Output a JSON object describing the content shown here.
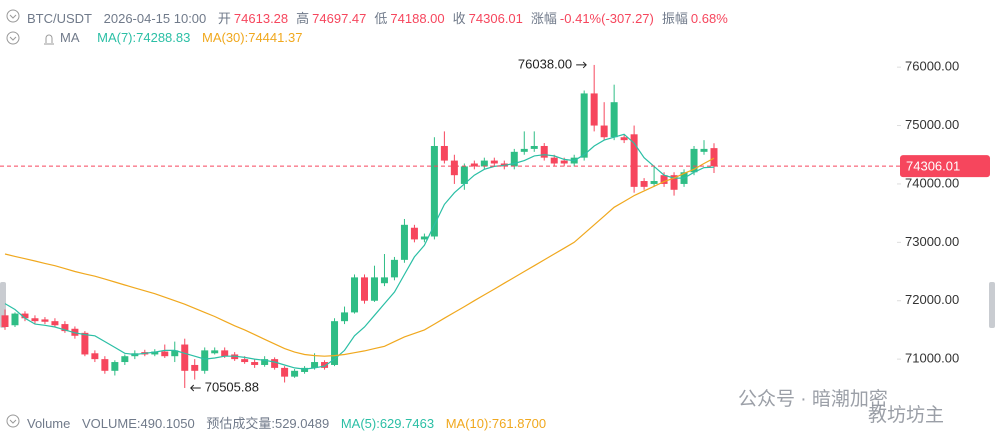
{
  "header": {
    "symbol": "BTC/USDT",
    "time": "2026-04-15 10:00",
    "items": [
      {
        "label": "开",
        "value": "74613.28"
      },
      {
        "label": "高",
        "value": "74697.47"
      },
      {
        "label": "低",
        "value": "74188.00"
      },
      {
        "label": "收",
        "value": "74306.01"
      },
      {
        "label": "涨幅",
        "value": "-0.41%(-307.27)"
      },
      {
        "label": "振幅",
        "value": "0.68%"
      }
    ]
  },
  "ma_legend": {
    "title": "MA",
    "ma7": "MA(7):74288.83",
    "ma30": "MA(30):74441.37"
  },
  "volume_legend": {
    "title": "Volume",
    "volume": "VOLUME:490.1050",
    "estimate": "预估成交量:529.0489",
    "ma5": "MA(5):629.7463",
    "ma10": "MA(10):761.8700"
  },
  "watermark": [
    "公众号 · 暗潮加密",
    "教坊坊主"
  ],
  "chart_data": {
    "type": "candlestick",
    "up_color": "#2ebd85",
    "down_color": "#f6465d",
    "open": [
      71750,
      71580,
      71780,
      71700,
      71680,
      71650,
      71600,
      71520,
      71450,
      71100,
      71000,
      70800,
      70950,
      71050,
      71120,
      71080,
      71130,
      71050,
      71250,
      70900,
      70800,
      71100,
      71150,
      71080,
      71000,
      70950,
      70900,
      71000,
      70850,
      70700,
      70780,
      70850,
      70950,
      70900,
      71650,
      71800,
      72400,
      72000,
      72300,
      72400,
      72700,
      73250,
      73050,
      73100,
      74650,
      74400,
      74000,
      74350,
      74300,
      74400,
      74350,
      74300,
      74550,
      74600,
      74650,
      74450,
      74400,
      74350,
      74450,
      75550,
      75000,
      74800,
      74800,
      74850,
      74050,
      74000,
      74150,
      74150,
      74000,
      74200,
      74550,
      74613.28
    ],
    "high": [
      71850,
      71800,
      71820,
      71750,
      71720,
      71700,
      71650,
      71560,
      71480,
      71150,
      71050,
      70980,
      71080,
      71150,
      71160,
      71170,
      71250,
      71300,
      71350,
      71000,
      71200,
      71200,
      71200,
      71120,
      71050,
      71000,
      71050,
      71030,
      70880,
      70830,
      70880,
      71100,
      70980,
      71700,
      71900,
      72450,
      72450,
      72600,
      72800,
      72750,
      73400,
      73300,
      73150,
      74800,
      74900,
      74500,
      74350,
      74400,
      74450,
      74450,
      74400,
      74600,
      74900,
      74900,
      74700,
      74500,
      74450,
      74500,
      75600,
      76038,
      75400,
      75700,
      74850,
      75000,
      74100,
      74300,
      74200,
      74200,
      74250,
      74650,
      74750,
      74697.47
    ],
    "low": [
      71500,
      71550,
      71650,
      71600,
      71600,
      71550,
      71450,
      71350,
      71050,
      70950,
      70750,
      70720,
      70900,
      71000,
      71050,
      71050,
      71020,
      70950,
      70505.88,
      70650,
      70750,
      71080,
      71020,
      70970,
      70920,
      70850,
      70870,
      70820,
      70600,
      70680,
      70750,
      70820,
      70820,
      70880,
      71600,
      71780,
      71950,
      71980,
      72250,
      72350,
      72650,
      73000,
      73000,
      73050,
      74350,
      74000,
      73900,
      74250,
      74250,
      74300,
      74250,
      74250,
      74500,
      74550,
      74400,
      74300,
      74300,
      74300,
      74400,
      74900,
      74750,
      74750,
      74700,
      73850,
      73900,
      73950,
      73950,
      73800,
      73950,
      74150,
      74500,
      74188
    ],
    "close": [
      71550,
      71780,
      71700,
      71650,
      71640,
      71580,
      71480,
      71400,
      71080,
      71000,
      70800,
      70950,
      71050,
      71100,
      71080,
      71130,
      71050,
      71150,
      70800,
      70800,
      71150,
      71150,
      71050,
      71000,
      70950,
      70900,
      71000,
      70850,
      70700,
      70800,
      70850,
      70950,
      70850,
      71650,
      71800,
      72400,
      72000,
      72400,
      72400,
      72700,
      73300,
      73050,
      73100,
      74650,
      74400,
      74150,
      74300,
      74300,
      74400,
      74350,
      74300,
      74550,
      74600,
      74650,
      74450,
      74350,
      74350,
      74450,
      75550,
      75000,
      74800,
      75400,
      74750,
      73950,
      73950,
      74050,
      74000,
      73900,
      74200,
      74600,
      74600,
      74306.01
    ],
    "series": [
      {
        "name": "MA(7)",
        "color": "#2bbfa5",
        "values": [
          71950,
          71850,
          71700,
          71600,
          71580,
          71550,
          71500,
          71450,
          71420,
          71400,
          71300,
          71200,
          71100,
          71080,
          71100,
          71120,
          71150,
          71150,
          71100,
          71050,
          71000,
          71020,
          71050,
          71050,
          71030,
          71000,
          70980,
          70950,
          70900,
          70850,
          70830,
          70850,
          70880,
          71000,
          71150,
          71400,
          71550,
          71750,
          71950,
          72150,
          72450,
          72750,
          72950,
          73300,
          73650,
          73850,
          74000,
          74150,
          74250,
          74300,
          74320,
          74350,
          74400,
          74480,
          74500,
          74480,
          74420,
          74400,
          74500,
          74650,
          74750,
          74800,
          74850,
          74700,
          74450,
          74300,
          74150,
          74100,
          74100,
          74200,
          74280,
          74288.83
        ]
      },
      {
        "name": "MA(30)",
        "color": "#f0a81e",
        "values": [
          72800,
          72760,
          72720,
          72680,
          72640,
          72600,
          72550,
          72500,
          72460,
          72420,
          72370,
          72320,
          72270,
          72220,
          72170,
          72120,
          72060,
          72000,
          71940,
          71870,
          71800,
          71730,
          71650,
          71570,
          71500,
          71420,
          71340,
          71260,
          71180,
          71120,
          71080,
          71060,
          71050,
          71060,
          71080,
          71110,
          71140,
          71180,
          71220,
          71300,
          71380,
          71440,
          71500,
          71600,
          71700,
          71800,
          71900,
          72000,
          72100,
          72200,
          72300,
          72400,
          72500,
          72600,
          72700,
          72800,
          72900,
          73000,
          73150,
          73300,
          73450,
          73600,
          73700,
          73800,
          73880,
          73960,
          74040,
          74100,
          74180,
          74250,
          74350,
          74441.37
        ]
      }
    ],
    "ylim": [
      70300,
      77150
    ],
    "yticks": [
      {
        "value": 71000,
        "label": "71000.00"
      },
      {
        "value": 72000,
        "label": "72000.00"
      },
      {
        "value": 73000,
        "label": "73000.00"
      },
      {
        "value": 74000,
        "label": "74000.00"
      },
      {
        "value": 75000,
        "label": "75000.00"
      },
      {
        "value": 76000,
        "label": "76000.00"
      }
    ],
    "annotations": [
      {
        "value": 76038,
        "label": "76038.00",
        "side": "left"
      },
      {
        "value": 70505.88,
        "label": "70505.88",
        "side": "right"
      }
    ],
    "grid": false
  }
}
